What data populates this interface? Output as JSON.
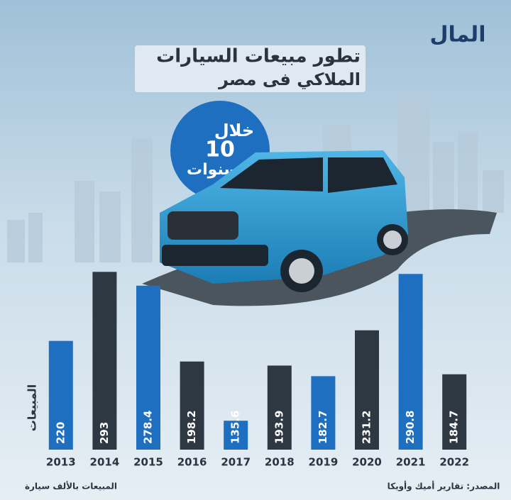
{
  "chart_data": {
    "type": "bar",
    "title": "تطور مبيعات السيارات",
    "subtitle": "الملاكي فى مصر",
    "badge": [
      "خلال",
      "10",
      "سنوات"
    ],
    "logo": "المال",
    "y_label": "المبيعات",
    "note": "المبيعات بالألف سيارة",
    "source": "المصدر: تقارير أميك وأويكا",
    "categories": [
      "2013",
      "2014",
      "2015",
      "2016",
      "2017",
      "2018",
      "2019",
      "2020",
      "2021",
      "2022"
    ],
    "values": [
      220,
      293,
      278.4,
      198.2,
      135.6,
      193.9,
      182.7,
      231.2,
      290.8,
      184.7
    ],
    "colors": [
      "#1f6fc0",
      "#2e3842",
      "#1f6fc0",
      "#2e3842",
      "#1f6fc0",
      "#2e3842",
      "#1f6fc0",
      "#2e3842",
      "#1f6fc0",
      "#2e3842"
    ],
    "ylim": [
      105,
      300
    ]
  }
}
